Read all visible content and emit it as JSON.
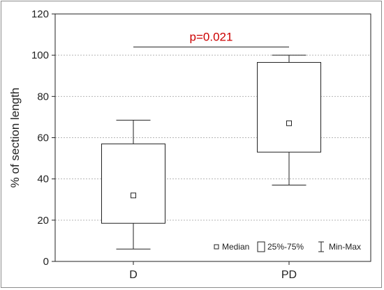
{
  "chart_data": {
    "type": "box",
    "title": "",
    "xlabel": "",
    "ylabel": "% of  section length",
    "ylim": [
      0,
      120
    ],
    "yticks": [
      0,
      20,
      40,
      60,
      80,
      100,
      120
    ],
    "grid": "horizontal-dashed",
    "categories": [
      "D",
      "PD"
    ],
    "boxes": [
      {
        "category": "D",
        "min": 6,
        "q1": 18.5,
        "median": 32,
        "q3": 57,
        "max": 68.5
      },
      {
        "category": "PD",
        "min": 37,
        "q1": 53,
        "median": 67,
        "q3": 96.5,
        "max": 100
      }
    ],
    "annotation": {
      "text": "p=0.021",
      "color": "#cc0000",
      "bracket_y": 104,
      "between": [
        "D",
        "PD"
      ]
    },
    "legend": {
      "placement": "bottom-right",
      "items": [
        {
          "symbol": "median-square",
          "label": "Median"
        },
        {
          "symbol": "box",
          "label": "25%-75%"
        },
        {
          "symbol": "whisker",
          "label": "Min-Max"
        }
      ]
    }
  }
}
